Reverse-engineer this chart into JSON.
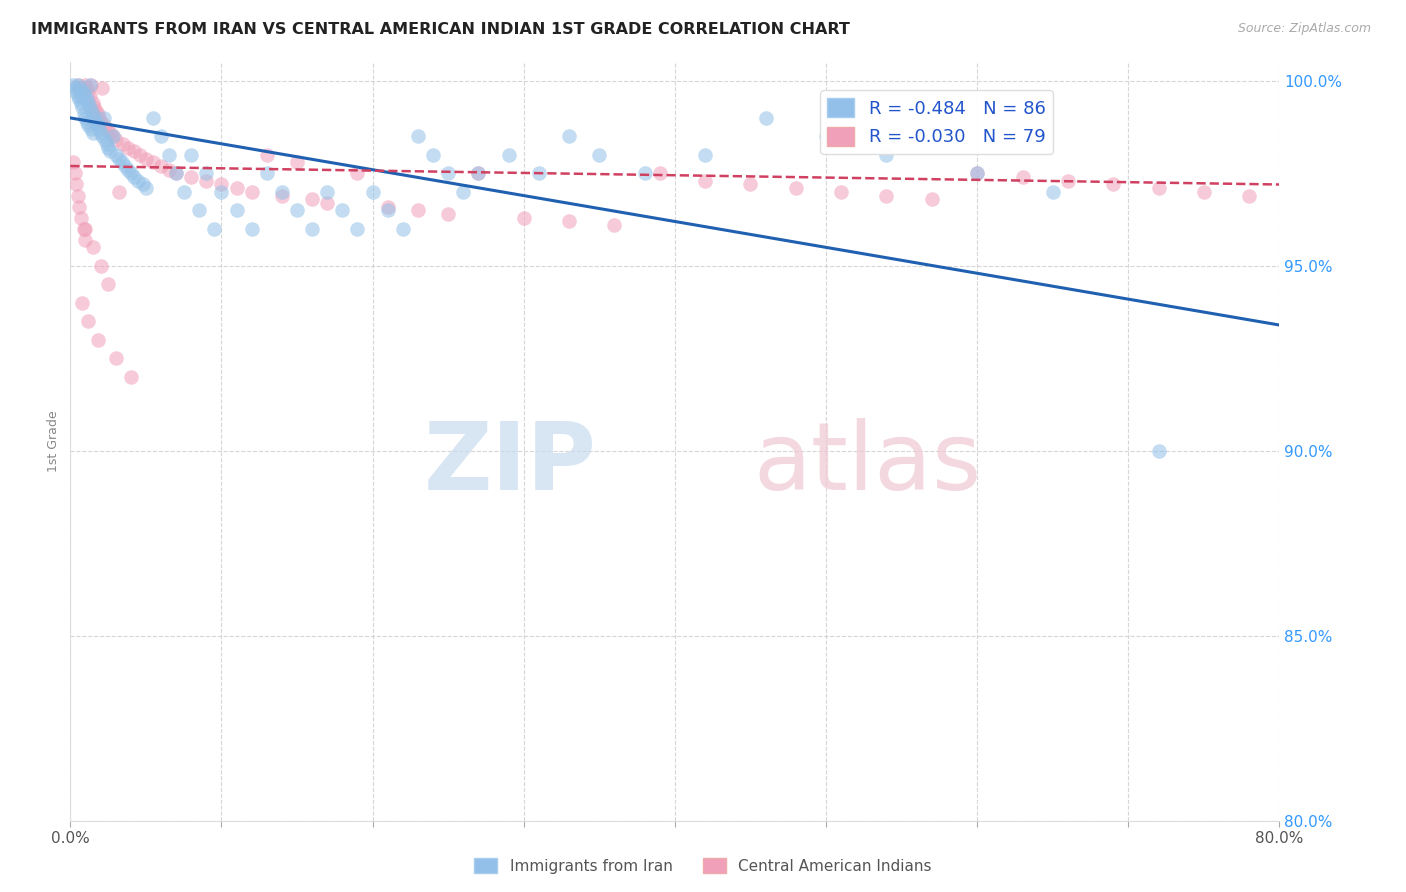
{
  "title": "IMMIGRANTS FROM IRAN VS CENTRAL AMERICAN INDIAN 1ST GRADE CORRELATION CHART",
  "source": "Source: ZipAtlas.com",
  "ylabel": "1st Grade",
  "xmin": 0.0,
  "xmax": 0.8,
  "ymin": 0.8,
  "ymax": 1.005,
  "x_ticks": [
    0.0,
    0.1,
    0.2,
    0.3,
    0.4,
    0.5,
    0.6,
    0.7,
    0.8
  ],
  "y_ticks": [
    0.8,
    0.85,
    0.9,
    0.95,
    1.0
  ],
  "legend_R_blue": "-0.484",
  "legend_N_blue": "86",
  "legend_R_pink": "-0.030",
  "legend_N_pink": "79",
  "blue_color": "#92C0E8",
  "pink_color": "#F0A0B8",
  "blue_line_color": "#2060B0",
  "pink_line_color": "#D04060",
  "blue_line_x0": 0.0,
  "blue_line_y0": 0.99,
  "blue_line_x1": 0.8,
  "blue_line_y1": 0.934,
  "pink_line_x0": 0.0,
  "pink_line_y0": 0.977,
  "pink_line_x1": 0.8,
  "pink_line_y1": 0.972,
  "blue_scatter_x": [
    0.002,
    0.003,
    0.004,
    0.005,
    0.005,
    0.006,
    0.006,
    0.007,
    0.007,
    0.008,
    0.008,
    0.009,
    0.009,
    0.01,
    0.01,
    0.011,
    0.011,
    0.012,
    0.012,
    0.013,
    0.013,
    0.014,
    0.014,
    0.015,
    0.015,
    0.016,
    0.017,
    0.018,
    0.019,
    0.02,
    0.021,
    0.022,
    0.023,
    0.024,
    0.025,
    0.026,
    0.028,
    0.03,
    0.032,
    0.034,
    0.036,
    0.038,
    0.04,
    0.042,
    0.045,
    0.048,
    0.05,
    0.055,
    0.06,
    0.065,
    0.07,
    0.075,
    0.08,
    0.085,
    0.09,
    0.095,
    0.1,
    0.11,
    0.12,
    0.13,
    0.14,
    0.15,
    0.16,
    0.17,
    0.18,
    0.19,
    0.2,
    0.21,
    0.22,
    0.23,
    0.24,
    0.25,
    0.26,
    0.27,
    0.29,
    0.31,
    0.33,
    0.35,
    0.38,
    0.42,
    0.46,
    0.5,
    0.54,
    0.6,
    0.65,
    0.72
  ],
  "blue_scatter_y": [
    0.999,
    0.998,
    0.997,
    0.999,
    0.996,
    0.998,
    0.995,
    0.997,
    0.994,
    0.996,
    0.993,
    0.997,
    0.991,
    0.996,
    0.99,
    0.995,
    0.989,
    0.994,
    0.988,
    0.993,
    0.999,
    0.992,
    0.987,
    0.991,
    0.986,
    0.99,
    0.989,
    0.988,
    0.987,
    0.986,
    0.985,
    0.99,
    0.984,
    0.983,
    0.982,
    0.981,
    0.985,
    0.98,
    0.979,
    0.978,
    0.977,
    0.976,
    0.975,
    0.974,
    0.973,
    0.972,
    0.971,
    0.99,
    0.985,
    0.98,
    0.975,
    0.97,
    0.98,
    0.965,
    0.975,
    0.96,
    0.97,
    0.965,
    0.96,
    0.975,
    0.97,
    0.965,
    0.96,
    0.97,
    0.965,
    0.96,
    0.97,
    0.965,
    0.96,
    0.985,
    0.98,
    0.975,
    0.97,
    0.975,
    0.98,
    0.975,
    0.985,
    0.98,
    0.975,
    0.98,
    0.99,
    0.985,
    0.98,
    0.975,
    0.97,
    0.9
  ],
  "pink_scatter_x": [
    0.002,
    0.003,
    0.004,
    0.005,
    0.005,
    0.006,
    0.006,
    0.007,
    0.008,
    0.009,
    0.01,
    0.01,
    0.011,
    0.012,
    0.013,
    0.014,
    0.015,
    0.016,
    0.017,
    0.018,
    0.019,
    0.02,
    0.021,
    0.022,
    0.024,
    0.026,
    0.028,
    0.03,
    0.032,
    0.035,
    0.038,
    0.042,
    0.046,
    0.05,
    0.055,
    0.06,
    0.065,
    0.07,
    0.08,
    0.09,
    0.1,
    0.11,
    0.12,
    0.13,
    0.14,
    0.15,
    0.16,
    0.17,
    0.19,
    0.21,
    0.23,
    0.25,
    0.27,
    0.3,
    0.33,
    0.36,
    0.39,
    0.42,
    0.45,
    0.48,
    0.51,
    0.54,
    0.57,
    0.6,
    0.63,
    0.66,
    0.69,
    0.72,
    0.75,
    0.78,
    0.01,
    0.015,
    0.02,
    0.025,
    0.008,
    0.012,
    0.018,
    0.03,
    0.04
  ],
  "pink_scatter_y": [
    0.978,
    0.975,
    0.972,
    0.999,
    0.969,
    0.998,
    0.966,
    0.963,
    0.997,
    0.96,
    0.999,
    0.957,
    0.998,
    0.997,
    0.996,
    0.999,
    0.994,
    0.993,
    0.992,
    0.991,
    0.99,
    0.989,
    0.998,
    0.988,
    0.987,
    0.986,
    0.985,
    0.984,
    0.97,
    0.983,
    0.982,
    0.981,
    0.98,
    0.979,
    0.978,
    0.977,
    0.976,
    0.975,
    0.974,
    0.973,
    0.972,
    0.971,
    0.97,
    0.98,
    0.969,
    0.978,
    0.968,
    0.967,
    0.975,
    0.966,
    0.965,
    0.964,
    0.975,
    0.963,
    0.962,
    0.961,
    0.975,
    0.973,
    0.972,
    0.971,
    0.97,
    0.969,
    0.968,
    0.975,
    0.974,
    0.973,
    0.972,
    0.971,
    0.97,
    0.969,
    0.96,
    0.955,
    0.95,
    0.945,
    0.94,
    0.935,
    0.93,
    0.925,
    0.92
  ]
}
